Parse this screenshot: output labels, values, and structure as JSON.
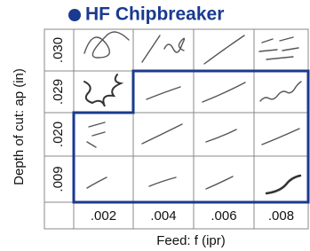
{
  "header": {
    "title": "HF Chipbreaker"
  },
  "axes": {
    "y_label": "Depth of cut: ap (in)",
    "x_label": "Feed: f (ipr)"
  },
  "rows": [
    ".030",
    ".029",
    ".020",
    ".009"
  ],
  "columns": [
    ".002",
    ".004",
    ".006",
    ".008"
  ]
}
